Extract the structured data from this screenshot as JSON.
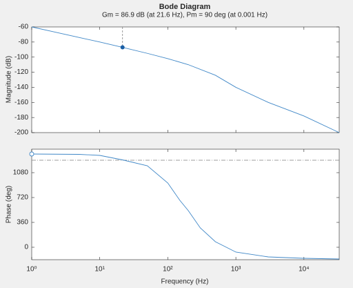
{
  "chart_data": [
    {
      "type": "line",
      "title": "Bode Diagram",
      "subtitle": "Gm = 86.9 dB (at 21.6 Hz),  Pm = 90 deg (at 0.001 Hz)",
      "ylabel": "Magnitude (dB)",
      "x": [
        1,
        2,
        5,
        10,
        21.6,
        50,
        100,
        200,
        500,
        1000,
        3000,
        10000,
        33000
      ],
      "series": [
        {
          "color": "#3f87c7",
          "values": [
            -60,
            -66,
            -74,
            -80,
            -87,
            -95,
            -102,
            -110,
            -124,
            -140,
            -160,
            -178,
            -200
          ]
        }
      ],
      "xlim": [
        1,
        33000
      ],
      "log_x": true,
      "ylim": [
        -200,
        -60
      ],
      "yticks": [
        -200,
        -180,
        -160,
        -140,
        -120,
        -100,
        -80,
        -60
      ],
      "gm_marker": {
        "x": 21.6,
        "value": -87
      }
    },
    {
      "type": "line",
      "ylabel": "Phase (deg)",
      "xlabel": "Frequency (Hz)",
      "x": [
        1,
        5,
        10,
        21.6,
        50,
        100,
        150,
        200,
        300,
        500,
        1000,
        3000,
        10000,
        33000
      ],
      "series": [
        {
          "color": "#3f87c7",
          "values": [
            1350,
            1345,
            1330,
            1265,
            1180,
            930,
            680,
            530,
            280,
            80,
            -70,
            -140,
            -160,
            -170
          ]
        }
      ],
      "xlim": [
        1,
        33000
      ],
      "log_x": true,
      "xticks": [
        {
          "value": 1,
          "label": "10⁰"
        },
        {
          "value": 10,
          "label": "10¹"
        },
        {
          "value": 100,
          "label": "10²"
        },
        {
          "value": 1000,
          "label": "10³"
        },
        {
          "value": 10000,
          "label": "10⁴"
        }
      ],
      "ylim": [
        -180,
        1420
      ],
      "yticks": [
        0,
        360,
        720,
        1080
      ],
      "reference_line": 1260,
      "pm_marker": {
        "x": 1,
        "value": 1350
      }
    }
  ]
}
